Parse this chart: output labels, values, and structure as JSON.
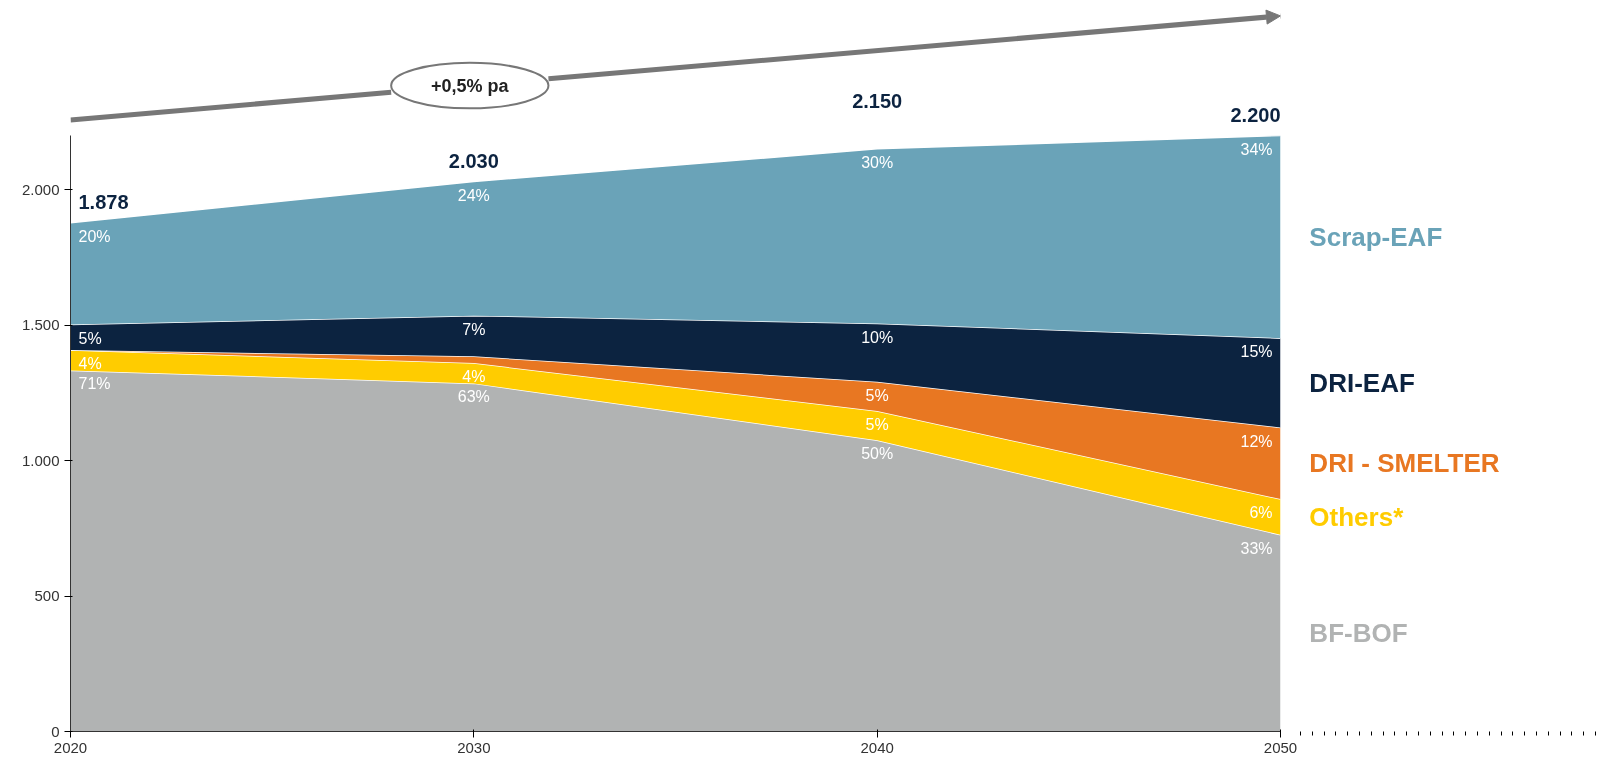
{
  "chart_data": {
    "type": "area",
    "stacked": true,
    "x": [
      "2020",
      "2030",
      "2040",
      "2050"
    ],
    "series": [
      {
        "name": "BF-BOF",
        "color": "#b1b3b3",
        "values": [
          1333,
          1285,
          1075,
          726
        ]
      },
      {
        "name": "Others*",
        "color": "#ffcc00",
        "values": [
          75,
          75,
          108,
          132
        ]
      },
      {
        "name": "DRI - SMELTER",
        "color": "#e87722",
        "values": [
          0,
          25,
          108,
          264
        ]
      },
      {
        "name": "DRI-EAF",
        "color": "#0c2340",
        "values": [
          94,
          150,
          215,
          330
        ]
      },
      {
        "name": "Scrap-EAF",
        "color": "#6aa3b8",
        "values": [
          376,
          495,
          645,
          748
        ]
      }
    ],
    "totals": [
      "1.878",
      "2.030",
      "2.150",
      "2.200"
    ],
    "annotations": [
      "+0,5% pa",
      {
        "text": "71%",
        "x": "2020",
        "y": 1333
      },
      {
        "text": "63%",
        "x": "2030",
        "y": 1285
      },
      {
        "text": "50%",
        "x": "2040",
        "y": 1075
      },
      {
        "text": "33%",
        "x": "2050",
        "y": 726
      },
      {
        "text": "4%",
        "x": "2020",
        "y": 1408
      },
      {
        "text": "4%",
        "x": "2030",
        "y": 1360
      },
      {
        "text": "5%",
        "x": "2040",
        "y": 1183
      },
      {
        "text": "6%",
        "x": "2050",
        "y": 858
      },
      {
        "text": "5%",
        "x": "2040",
        "y": 1291
      },
      {
        "text": "12%",
        "x": "2050",
        "y": 1122
      },
      {
        "text": "5%",
        "x": "2020",
        "y": 1502
      },
      {
        "text": "7%",
        "x": "2030",
        "y": 1535
      },
      {
        "text": "10%",
        "x": "2040",
        "y": 1506
      },
      {
        "text": "15%",
        "x": "2050",
        "y": 1452
      },
      {
        "text": "20%",
        "x": "2020",
        "y": 1878
      },
      {
        "text": "24%",
        "x": "2030",
        "y": 2030
      },
      {
        "text": "30%",
        "x": "2040",
        "y": 2151
      },
      {
        "text": "34%",
        "x": "2050",
        "y": 2200
      }
    ],
    "xlim": [
      "2020",
      "2050"
    ],
    "xticks": [
      "2020",
      "2030",
      "2040",
      "2050"
    ],
    "ylim": [
      0,
      2200
    ],
    "yticks": [
      0,
      500,
      {
        "value": 1000,
        "label": "1.000"
      },
      {
        "value": 1500,
        "label": "1.500"
      },
      {
        "value": 2000,
        "label": "2.000"
      }
    ],
    "grid": false
  }
}
